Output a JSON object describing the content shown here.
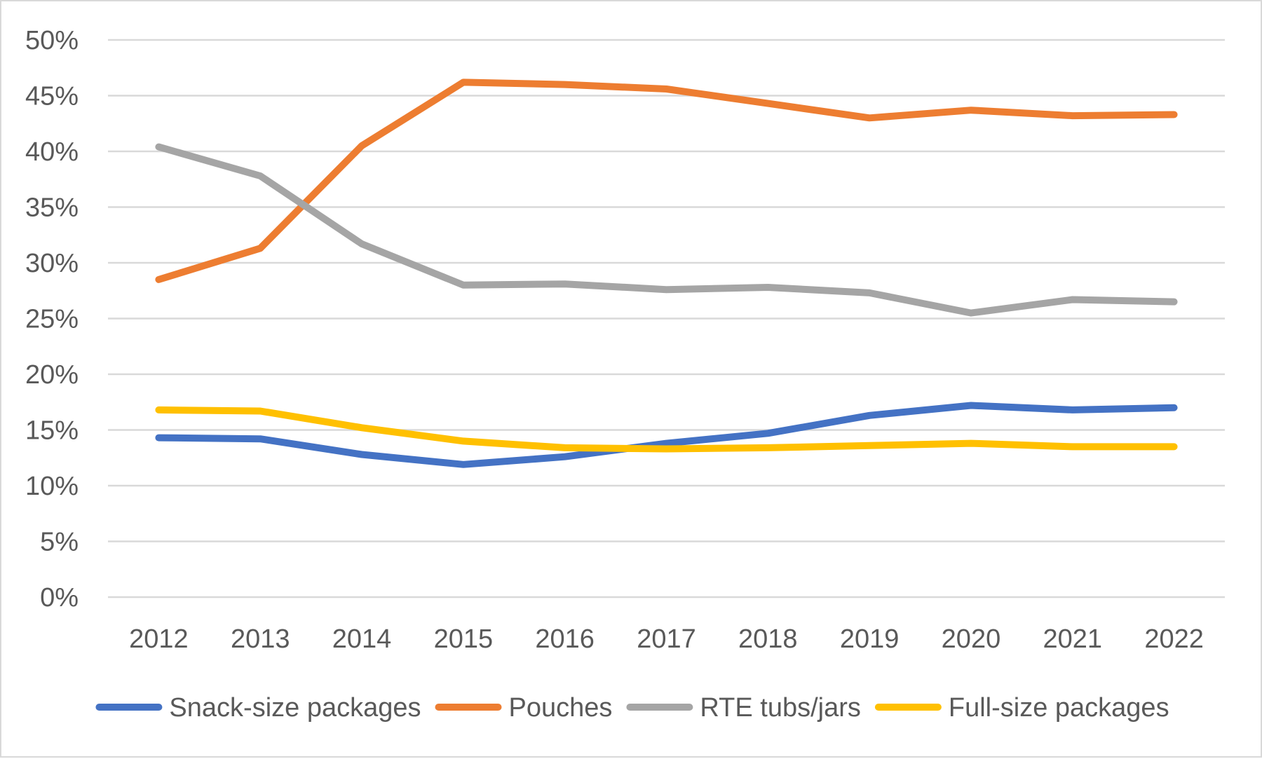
{
  "chart_data": {
    "type": "line",
    "title": "",
    "xlabel": "",
    "ylabel": "",
    "categories": [
      "2012",
      "2013",
      "2014",
      "2015",
      "2016",
      "2017",
      "2018",
      "2019",
      "2020",
      "2021",
      "2022"
    ],
    "ylim": [
      0,
      50
    ],
    "y_ticks": [
      0,
      5,
      10,
      15,
      20,
      25,
      30,
      35,
      40,
      45,
      50
    ],
    "y_tick_labels": [
      "0%",
      "5%",
      "10%",
      "15%",
      "20%",
      "25%",
      "30%",
      "35%",
      "40%",
      "45%",
      "50%"
    ],
    "grid": true,
    "legend_position": "bottom",
    "series": [
      {
        "name": "Snack-size packages",
        "color": "#4472C4",
        "values": [
          14.3,
          14.2,
          12.8,
          11.9,
          12.6,
          13.8,
          14.7,
          16.3,
          17.2,
          16.8,
          17.0
        ]
      },
      {
        "name": "Pouches",
        "color": "#ED7D31",
        "values": [
          28.5,
          31.3,
          40.5,
          46.2,
          46.0,
          45.6,
          44.3,
          43.0,
          43.7,
          43.2,
          43.3
        ]
      },
      {
        "name": "RTE tubs/jars",
        "color": "#A5A5A5",
        "values": [
          40.4,
          37.8,
          31.7,
          28.0,
          28.1,
          27.6,
          27.8,
          27.3,
          25.5,
          26.7,
          26.5
        ]
      },
      {
        "name": "Full-size packages",
        "color": "#FFC000",
        "values": [
          16.8,
          16.7,
          15.2,
          14.0,
          13.4,
          13.3,
          13.4,
          13.6,
          13.8,
          13.5,
          13.5
        ]
      }
    ]
  }
}
